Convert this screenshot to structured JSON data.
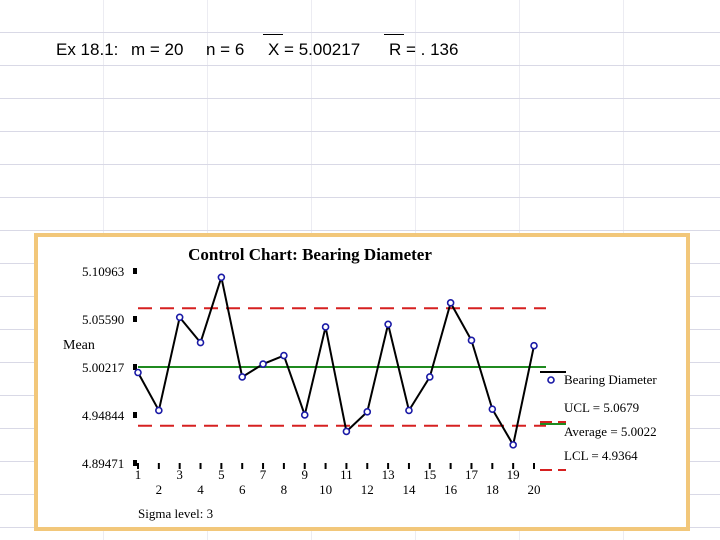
{
  "header": {
    "example": "Ex 18.1:",
    "m": "m = 20",
    "n": "n = 6",
    "xbar": "X = 5.00217",
    "rbar": "R = . 136"
  },
  "chart_data": {
    "type": "line",
    "title": "Control Chart: Bearing Diameter",
    "ylabel": "Mean",
    "xlabel": "",
    "footer": "Sigma level: 3",
    "x": [
      1,
      2,
      3,
      4,
      5,
      6,
      7,
      8,
      9,
      10,
      11,
      12,
      13,
      14,
      15,
      16,
      17,
      18,
      19,
      20
    ],
    "y_ticks": [
      5.10963,
      5.0559,
      5.00217,
      4.94844,
      4.89471
    ],
    "y_tick_labels": [
      "5.10963",
      "5.05590",
      "5.00217",
      "4.94844",
      "4.89471"
    ],
    "ylim": [
      4.89471,
      5.10963
    ],
    "series": [
      {
        "name": "Bearing Diameter",
        "values": [
          4.996,
          4.9535,
          5.0578,
          5.0295,
          5.1026,
          4.991,
          5.0055,
          5.015,
          4.9485,
          5.047,
          4.93,
          4.952,
          5.05,
          4.9535,
          4.991,
          5.074,
          5.032,
          4.955,
          4.915,
          5.026
        ]
      }
    ],
    "ucl": 5.0679,
    "center": 5.0022,
    "lcl": 4.9364,
    "legend": [
      {
        "label": "Bearing Diameter",
        "type": "marker",
        "color": "#1a1aa6"
      },
      {
        "label": "UCL = 5.0679",
        "type": "dash",
        "color": "#d62020"
      },
      {
        "label": "Average = 5.0022",
        "type": "solid",
        "color": "#1f8a1f"
      },
      {
        "label": "LCL = 4.9364",
        "type": "dash",
        "color": "#d62020"
      }
    ],
    "legend_position": "right",
    "colors": {
      "series": "#000000",
      "marker": "#1a1aa6",
      "limits": "#d62020",
      "center": "#1f8a1f",
      "frame": "#f2c77a"
    }
  }
}
